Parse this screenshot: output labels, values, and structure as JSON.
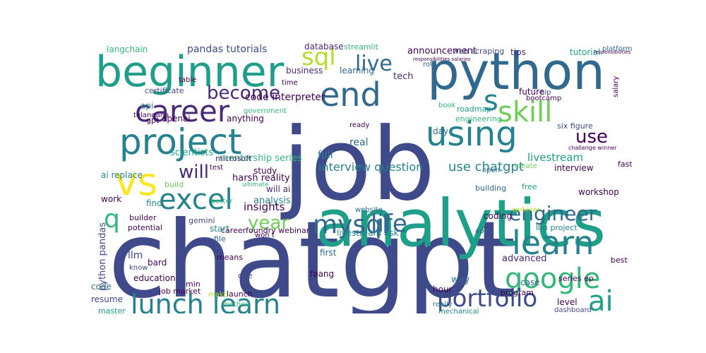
{
  "chart_data": {
    "type": "wordcloud",
    "title": "",
    "palette": [
      "#440154",
      "#482878",
      "#3e4a89",
      "#31688e",
      "#26828e",
      "#1f9e89",
      "#35b779",
      "#6ece58",
      "#b5de2b",
      "#fde725"
    ],
    "words": [
      {
        "text": "chatgpt",
        "weight": 100,
        "color": "#3e4a89"
      },
      {
        "text": "job",
        "weight": 92,
        "color": "#3e4a89"
      },
      {
        "text": "analytics",
        "weight": 78,
        "color": "#1f9e89"
      },
      {
        "text": "python",
        "weight": 60,
        "color": "#31688e"
      },
      {
        "text": "beginner",
        "weight": 52,
        "color": "#1f9e89"
      },
      {
        "text": "project",
        "weight": 42,
        "color": "#26828e"
      },
      {
        "text": "using",
        "weight": 40,
        "color": "#26828e"
      },
      {
        "text": "end",
        "weight": 38,
        "color": "#31688e"
      },
      {
        "text": "vs",
        "weight": 36,
        "color": "#fde725"
      },
      {
        "text": "career",
        "weight": 34,
        "color": "#482878"
      },
      {
        "text": "excel",
        "weight": 33,
        "color": "#26828e"
      },
      {
        "text": "skill",
        "weight": 32,
        "color": "#6ece58"
      },
      {
        "text": "learn",
        "weight": 31,
        "color": "#26828e"
      },
      {
        "text": "lunch learn",
        "weight": 30,
        "color": "#26828e"
      },
      {
        "text": "google",
        "weight": 29,
        "color": "#35b779"
      },
      {
        "text": "mysql",
        "weight": 28,
        "color": "#31688e"
      },
      {
        "text": "ai",
        "weight": 27,
        "color": "#1f9e89"
      },
      {
        "text": "sql",
        "weight": 27,
        "color": "#b5de2b"
      },
      {
        "text": "s",
        "weight": 26,
        "color": "#26828e"
      },
      {
        "text": "portfolio",
        "weight": 25,
        "color": "#3e4a89"
      },
      {
        "text": "life",
        "weight": 24,
        "color": "#31688e"
      },
      {
        "text": "q",
        "weight": 23,
        "color": "#35b779"
      },
      {
        "text": "engineer",
        "weight": 21,
        "color": "#31688e"
      },
      {
        "text": "live",
        "weight": 21,
        "color": "#31688e"
      },
      {
        "text": "become",
        "weight": 19,
        "color": "#482878"
      },
      {
        "text": "use",
        "weight": 18,
        "color": "#440154"
      },
      {
        "text": "year",
        "weight": 18,
        "color": "#6ece58"
      },
      {
        "text": "will",
        "weight": 17,
        "color": "#482878"
      },
      {
        "text": "use chatgpt",
        "weight": 13,
        "color": "#26828e"
      },
      {
        "text": "interview question",
        "weight": 12,
        "color": "#26828e"
      },
      {
        "text": "livestream",
        "weight": 11,
        "color": "#1f9e89"
      },
      {
        "text": "code interpreter",
        "weight": 10,
        "color": "#440154"
      },
      {
        "text": "announcement",
        "weight": 10,
        "color": "#440154"
      },
      {
        "text": "pandas tutorials",
        "weight": 10,
        "color": "#3e4a89"
      },
      {
        "text": "mentorship series",
        "weight": 9,
        "color": "#35b779"
      },
      {
        "text": "python pandas",
        "weight": 9,
        "color": "#3e4a89"
      },
      {
        "text": "harsh reality",
        "weight": 9,
        "color": "#440154"
      },
      {
        "text": "careerfoundry webinar",
        "weight": 8,
        "color": "#440154"
      },
      {
        "text": "livestream ask",
        "weight": 8,
        "color": "#26828e"
      },
      {
        "text": "analysis",
        "weight": 9,
        "color": "#26828e"
      },
      {
        "text": "insights",
        "weight": 10,
        "color": "#440154"
      },
      {
        "text": "advanced",
        "weight": 9,
        "color": "#482878"
      },
      {
        "text": "scientists",
        "weight": 9,
        "color": "#1f9e89"
      },
      {
        "text": "full",
        "weight": 9,
        "color": "#26828e"
      },
      {
        "text": "real",
        "weight": 9,
        "color": "#31688e"
      },
      {
        "text": "business",
        "weight": 8,
        "color": "#482878"
      },
      {
        "text": "learning",
        "weight": 8,
        "color": "#31688e"
      },
      {
        "text": "database",
        "weight": 8,
        "color": "#482878"
      },
      {
        "text": "streamlit",
        "weight": 7,
        "color": "#35b779"
      },
      {
        "text": "web scraping",
        "weight": 7,
        "color": "#3e4a89"
      },
      {
        "text": "tips",
        "weight": 8,
        "color": "#482878"
      },
      {
        "text": "tutorial",
        "weight": 8,
        "color": "#1f9e89"
      },
      {
        "text": "platform",
        "weight": 7,
        "color": "#31688e"
      },
      {
        "text": "langchain",
        "weight": 8,
        "color": "#35b779"
      },
      {
        "text": "tech",
        "weight": 8,
        "color": "#482878"
      },
      {
        "text": "certificate",
        "weight": 7,
        "color": "#3e4a89"
      },
      {
        "text": "api",
        "weight": 8,
        "color": "#26828e"
      },
      {
        "text": "openai",
        "weight": 8,
        "color": "#440154"
      },
      {
        "text": "gpt",
        "weight": 7,
        "color": "#440154"
      },
      {
        "text": "telangana",
        "weight": 7,
        "color": "#440154"
      },
      {
        "text": "anything",
        "weight": 8,
        "color": "#440154"
      },
      {
        "text": "government",
        "weight": 7,
        "color": "#35b779"
      },
      {
        "text": "future",
        "weight": 8,
        "color": "#440154"
      },
      {
        "text": "bootcamp",
        "weight": 7,
        "color": "#440154"
      },
      {
        "text": "nlp",
        "weight": 7,
        "color": "#3e4a89"
      },
      {
        "text": "roadmap",
        "weight": 7,
        "color": "#1f9e89"
      },
      {
        "text": "engineering",
        "weight": 7,
        "color": "#35b779"
      },
      {
        "text": "six figure",
        "weight": 7,
        "color": "#3e4a89"
      },
      {
        "text": "microsoft",
        "weight": 7,
        "color": "#482878"
      },
      {
        "text": "ai replace",
        "weight": 8,
        "color": "#26828e"
      },
      {
        "text": "study",
        "weight": 8,
        "color": "#440154"
      },
      {
        "text": "will ai",
        "weight": 8,
        "color": "#482878"
      },
      {
        "text": "building",
        "weight": 7,
        "color": "#31688e"
      },
      {
        "text": "interview",
        "weight": 7,
        "color": "#440154"
      },
      {
        "text": "fast",
        "weight": 7,
        "color": "#440154"
      },
      {
        "text": "workshop",
        "weight": 7,
        "color": "#440154"
      },
      {
        "text": "free",
        "weight": 7,
        "color": "#1f9e89"
      },
      {
        "text": "open",
        "weight": 6,
        "color": "#31688e"
      },
      {
        "text": "day",
        "weight": 8,
        "color": "#31688e"
      },
      {
        "text": "find",
        "weight": 7,
        "color": "#26828e"
      },
      {
        "text": "build",
        "weight": 7,
        "color": "#6ece58"
      },
      {
        "text": "work",
        "weight": 8,
        "color": "#440154"
      },
      {
        "text": "builder",
        "weight": 7,
        "color": "#440154"
      },
      {
        "text": "potential",
        "weight": 7,
        "color": "#440154"
      },
      {
        "text": "gemini",
        "weight": 7,
        "color": "#3e4a89"
      },
      {
        "text": "start",
        "weight": 7,
        "color": "#26828e"
      },
      {
        "text": "coding",
        "weight": 7,
        "color": "#440154"
      },
      {
        "text": "llm project",
        "weight": 7,
        "color": "#26828e"
      },
      {
        "text": "website",
        "weight": 6,
        "color": "#31688e"
      },
      {
        "text": "won t",
        "weight": 6,
        "color": "#440154"
      },
      {
        "text": "app",
        "weight": 6,
        "color": "#31688e"
      },
      {
        "text": "llm",
        "weight": 9,
        "color": "#3e4a89"
      },
      {
        "text": "bard",
        "weight": 7,
        "color": "#440154"
      },
      {
        "text": "education",
        "weight": 7,
        "color": "#440154"
      },
      {
        "text": "know",
        "weight": 6,
        "color": "#3e4a89"
      },
      {
        "text": "file",
        "weight": 6,
        "color": "#31688e"
      },
      {
        "text": "means",
        "weight": 6,
        "color": "#440154"
      },
      {
        "text": "faang",
        "weight": 7,
        "color": "#440154"
      },
      {
        "text": "first",
        "weight": 7,
        "color": "#31688e"
      },
      {
        "text": "way",
        "weight": 8,
        "color": "#31688e"
      },
      {
        "text": "case",
        "weight": 7,
        "color": "#31688e"
      },
      {
        "text": "best",
        "weight": 6,
        "color": "#440154"
      },
      {
        "text": "one",
        "weight": 7,
        "color": "#3e4a89"
      },
      {
        "text": "min",
        "weight": 7,
        "color": "#440154"
      },
      {
        "text": "code",
        "weight": 8,
        "color": "#31688e"
      },
      {
        "text": "resume",
        "weight": 8,
        "color": "#3e4a89"
      },
      {
        "text": "master",
        "weight": 7,
        "color": "#1f9e89"
      },
      {
        "text": "job market",
        "weight": 7,
        "color": "#440154"
      },
      {
        "text": "make",
        "weight": 6,
        "color": "#b5de2b"
      },
      {
        "text": "launch",
        "weight": 7,
        "color": "#440154"
      },
      {
        "text": "method",
        "weight": 6,
        "color": "#35b779"
      },
      {
        "text": "hour",
        "weight": 7,
        "color": "#440154"
      },
      {
        "text": "program",
        "weight": 6,
        "color": "#440154"
      },
      {
        "text": "level",
        "weight": 7,
        "color": "#440154"
      },
      {
        "text": "series ep",
        "weight": 7,
        "color": "#440154"
      },
      {
        "text": "really",
        "weight": 6,
        "color": "#26828e"
      },
      {
        "text": "mechanical",
        "weight": 6,
        "color": "#26828e"
      },
      {
        "text": "dashboard",
        "weight": 6,
        "color": "#3e4a89"
      },
      {
        "text": "salary",
        "weight": 6,
        "color": "#440154"
      },
      {
        "text": "role",
        "weight": 6,
        "color": "#31688e"
      },
      {
        "text": "book",
        "weight": 6,
        "color": "#35b779"
      },
      {
        "text": "time",
        "weight": 6,
        "color": "#440154"
      },
      {
        "text": "table",
        "weight": 6,
        "color": "#440154"
      },
      {
        "text": "ready",
        "weight": 6,
        "color": "#440154"
      },
      {
        "text": "test",
        "weight": 6,
        "color": "#440154"
      },
      {
        "text": "create",
        "weight": 6,
        "color": "#6ece58"
      },
      {
        "text": "webinar",
        "weight": 6,
        "color": "#b5de2b"
      },
      {
        "text": "ultimate",
        "weight": 5,
        "color": "#35b779"
      },
      {
        "text": "better",
        "weight": 6,
        "color": "#35b779"
      },
      {
        "text": "challenge winner",
        "weight": 5,
        "color": "#440154"
      },
      {
        "text": "responsibilities salaries",
        "weight": 4,
        "color": "#440154"
      },
      {
        "text": "responsibilities",
        "weight": 4,
        "color": "#440154"
      }
    ]
  }
}
